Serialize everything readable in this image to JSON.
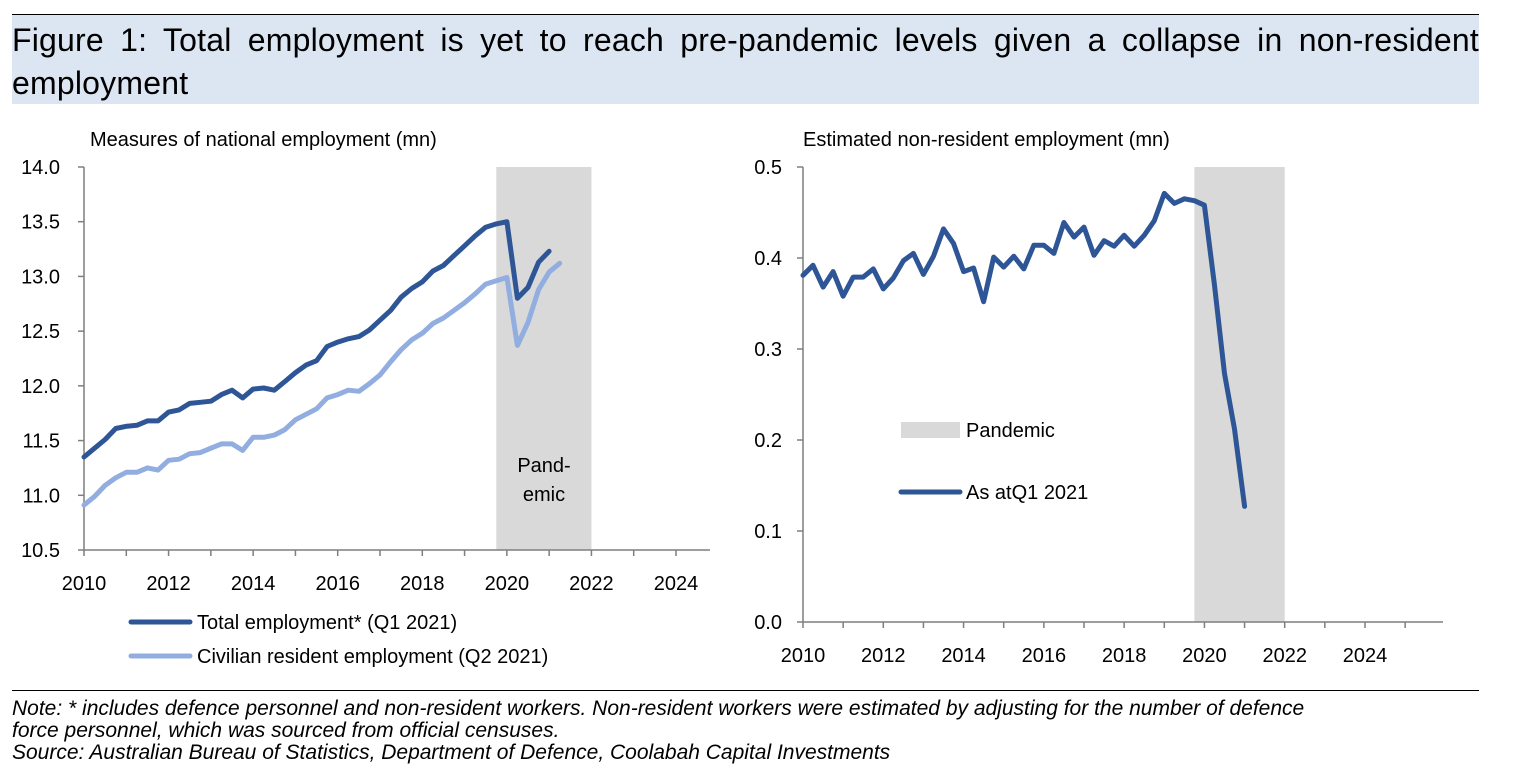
{
  "figure_title": "Figure 1: Total employment is yet to reach pre-pandemic levels given a collapse in non-resident employment",
  "note_line1": "Note: * includes defence personnel and non-resident workers. Non-resident workers were estimated by adjusting for the number of defence",
  "note_line2": "force personnel, which was sourced from official censuses.",
  "source_line": "Source: Australian Bureau of Statistics, Department of Defence, Coolabah Capital Investments",
  "colors": {
    "dark_series": "#2e5596",
    "light_series": "#92ade0",
    "pandemic_shade": "#d9d9d9",
    "title_band": "#dce6f2"
  },
  "chart_data": [
    {
      "type": "line",
      "title": "Measures of national employment (mn)",
      "xlim": [
        2010,
        2025.5
      ],
      "xticks": [
        2010,
        2012,
        2014,
        2016,
        2018,
        2020,
        2022,
        2024
      ],
      "ylim": [
        10.5,
        14.0
      ],
      "yticks": [
        10.5,
        11.0,
        11.5,
        12.0,
        12.5,
        13.0,
        13.5,
        14.0
      ],
      "y_decimals": 1,
      "shade": {
        "x0": 2019.75,
        "x1": 2022,
        "label_lines": [
          "Pand-",
          "emic"
        ]
      },
      "legend": [
        "Total employment* (Q1 2021)",
        "Civilian resident employment (Q2 2021)"
      ],
      "series": [
        {
          "name": "Total employment* (Q1 2021)",
          "color": "#2e5596",
          "x0": 2010,
          "step": 0.25,
          "values": [
            11.35,
            11.43,
            11.51,
            11.61,
            11.63,
            11.64,
            11.68,
            11.68,
            11.76,
            11.78,
            11.84,
            11.85,
            11.86,
            11.92,
            11.96,
            11.89,
            11.97,
            11.98,
            11.96,
            12.04,
            12.12,
            12.19,
            12.23,
            12.36,
            12.4,
            12.43,
            12.45,
            12.51,
            12.6,
            12.69,
            12.81,
            12.89,
            12.95,
            13.05,
            13.1,
            13.19,
            13.28,
            13.37,
            13.45,
            13.48,
            13.5,
            12.8,
            12.9,
            13.13,
            13.23
          ]
        },
        {
          "name": "Civilian resident employment (Q2 2021)",
          "color": "#92ade0",
          "x0": 2010,
          "step": 0.25,
          "values": [
            10.91,
            10.99,
            11.09,
            11.16,
            11.21,
            11.21,
            11.25,
            11.23,
            11.32,
            11.33,
            11.38,
            11.39,
            11.43,
            11.47,
            11.47,
            11.41,
            11.53,
            11.53,
            11.55,
            11.6,
            11.69,
            11.74,
            11.79,
            11.89,
            11.92,
            11.96,
            11.95,
            12.02,
            12.1,
            12.22,
            12.33,
            12.42,
            12.48,
            12.57,
            12.62,
            12.69,
            12.76,
            12.84,
            12.93,
            12.96,
            12.99,
            12.37,
            12.58,
            12.88,
            13.04,
            13.12
          ]
        }
      ]
    },
    {
      "type": "line",
      "title": "Estimated non-resident employment (mn)",
      "xlim": [
        2010,
        2025.0
      ],
      "xticks": [
        2010,
        2012,
        2014,
        2016,
        2018,
        2020,
        2022,
        2024
      ],
      "ylim": [
        0.0,
        0.5
      ],
      "yticks": [
        0.0,
        0.1,
        0.2,
        0.3,
        0.4,
        0.5
      ],
      "y_decimals": 1,
      "shade": {
        "x0": 2019.75,
        "x1": 2022
      },
      "legend": [
        "Pandemic",
        "As atQ1 2021"
      ],
      "series": [
        {
          "name": "As atQ1 2021",
          "color": "#2e5596",
          "x0": 2010,
          "step": 0.25,
          "values": [
            0.381,
            0.392,
            0.368,
            0.385,
            0.358,
            0.379,
            0.379,
            0.388,
            0.366,
            0.378,
            0.397,
            0.405,
            0.382,
            0.402,
            0.432,
            0.416,
            0.385,
            0.389,
            0.352,
            0.401,
            0.39,
            0.402,
            0.388,
            0.414,
            0.414,
            0.405,
            0.439,
            0.423,
            0.434,
            0.403,
            0.419,
            0.413,
            0.425,
            0.413,
            0.425,
            0.441,
            0.471,
            0.46,
            0.465,
            0.463,
            0.458,
            0.37,
            0.273,
            0.212,
            0.127
          ]
        }
      ]
    }
  ]
}
